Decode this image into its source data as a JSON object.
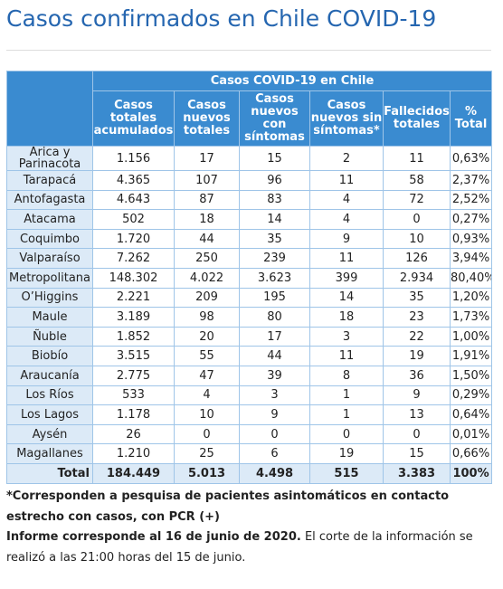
{
  "header": {
    "title": "Casos confirmados en Chile COVID-19"
  },
  "table": {
    "caption": "Casos COVID-19 en Chile",
    "columns": [
      "",
      "Casos totales acumulados",
      "Casos nuevos totales",
      "Casos nuevos con síntomas",
      "Casos nuevos sin síntomas*",
      "Fallecidos totales",
      "% Total"
    ],
    "rows": [
      [
        "Arica y Parinacota",
        "1.156",
        "17",
        "15",
        "2",
        "11",
        "0,63%"
      ],
      [
        "Tarapacá",
        "4.365",
        "107",
        "96",
        "11",
        "58",
        "2,37%"
      ],
      [
        "Antofagasta",
        "4.643",
        "87",
        "83",
        "4",
        "72",
        "2,52%"
      ],
      [
        "Atacama",
        "502",
        "18",
        "14",
        "4",
        "0",
        "0,27%"
      ],
      [
        "Coquimbo",
        "1.720",
        "44",
        "35",
        "9",
        "10",
        "0,93%"
      ],
      [
        "Valparaíso",
        "7.262",
        "250",
        "239",
        "11",
        "126",
        "3,94%"
      ],
      [
        "Metropolitana",
        "148.302",
        "4.022",
        "3.623",
        "399",
        "2.934",
        "80,40%"
      ],
      [
        "O’Higgins",
        "2.221",
        "209",
        "195",
        "14",
        "35",
        "1,20%"
      ],
      [
        "Maule",
        "3.189",
        "98",
        "80",
        "18",
        "23",
        "1,73%"
      ],
      [
        "Ñuble",
        "1.852",
        "20",
        "17",
        "3",
        "22",
        "1,00%"
      ],
      [
        "Biobío",
        "3.515",
        "55",
        "44",
        "11",
        "19",
        "1,91%"
      ],
      [
        "Araucanía",
        "2.775",
        "47",
        "39",
        "8",
        "36",
        "1,50%"
      ],
      [
        "Los Ríos",
        "533",
        "4",
        "3",
        "1",
        "9",
        "0,29%"
      ],
      [
        "Los Lagos",
        "1.178",
        "10",
        "9",
        "1",
        "13",
        "0,64%"
      ],
      [
        "Aysén",
        "26",
        "0",
        "0",
        "0",
        "0",
        "0,01%"
      ],
      [
        "Magallanes",
        "1.210",
        "25",
        "6",
        "19",
        "15",
        "0,66%"
      ]
    ],
    "total": [
      "Total",
      "184.449",
      "5.013",
      "4.498",
      "515",
      "3.383",
      "100%"
    ]
  },
  "notes": {
    "footnote": "*Corresponden a pesquisa de pacientes asintomáticos en contacto estrecho con casos, con PCR (+)",
    "report_bold": "Informe corresponde al 16 de junio de 2020.",
    "report_rest": "El corte de la información se realizó a las 21:00 horas del 15 de junio."
  }
}
